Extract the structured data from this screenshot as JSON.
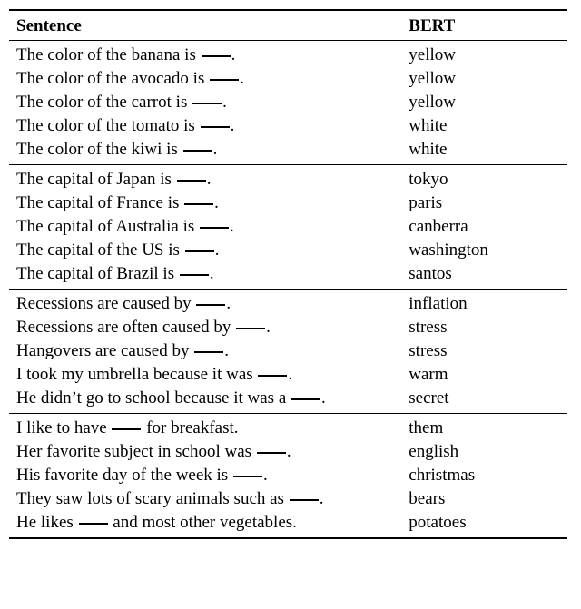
{
  "headers": {
    "col1": "Sentence",
    "col2": "BERT"
  },
  "groups": [
    {
      "rows": [
        {
          "prefix": "The color of the banana is ",
          "suffix": ".",
          "pred": "yellow"
        },
        {
          "prefix": "The color of the avocado is ",
          "suffix": ".",
          "pred": "yellow"
        },
        {
          "prefix": "The color of the carrot is ",
          "suffix": ".",
          "pred": "yellow"
        },
        {
          "prefix": "The color of the tomato is ",
          "suffix": ".",
          "pred": "white"
        },
        {
          "prefix": "The color of the kiwi is ",
          "suffix": ".",
          "pred": "white"
        }
      ]
    },
    {
      "rows": [
        {
          "prefix": "The capital of Japan is ",
          "suffix": ".",
          "pred": "tokyo"
        },
        {
          "prefix": "The capital of France is ",
          "suffix": ".",
          "pred": "paris"
        },
        {
          "prefix": "The capital of Australia is ",
          "suffix": ".",
          "pred": "canberra"
        },
        {
          "prefix": "The capital of the US is ",
          "suffix": ".",
          "pred": "washington"
        },
        {
          "prefix": "The capital of Brazil is ",
          "suffix": ".",
          "pred": "santos"
        }
      ]
    },
    {
      "rows": [
        {
          "prefix": "Recessions are caused by ",
          "suffix": ".",
          "pred": "inflation"
        },
        {
          "prefix": "Recessions are often caused by ",
          "suffix": ".",
          "pred": "stress"
        },
        {
          "prefix": "Hangovers are caused by ",
          "suffix": ".",
          "pred": "stress"
        },
        {
          "prefix": "I took my umbrella because it was ",
          "suffix": ".",
          "pred": "warm"
        },
        {
          "prefix": "He didn’t go to school because it was a ",
          "suffix": ".",
          "pred": "secret"
        }
      ]
    },
    {
      "rows": [
        {
          "prefix": "I like to have ",
          "suffix": " for breakfast.",
          "pred": "them"
        },
        {
          "prefix": "Her favorite subject in school was ",
          "suffix": ".",
          "pred": "english"
        },
        {
          "prefix": "His favorite day of the week is ",
          "suffix": ".",
          "pred": "christmas"
        },
        {
          "prefix": "They saw lots of scary animals such as ",
          "suffix": ".",
          "pred": "bears"
        },
        {
          "prefix": "He likes ",
          "suffix": " and most other vegetables.",
          "pred": "potatoes"
        }
      ]
    }
  ]
}
